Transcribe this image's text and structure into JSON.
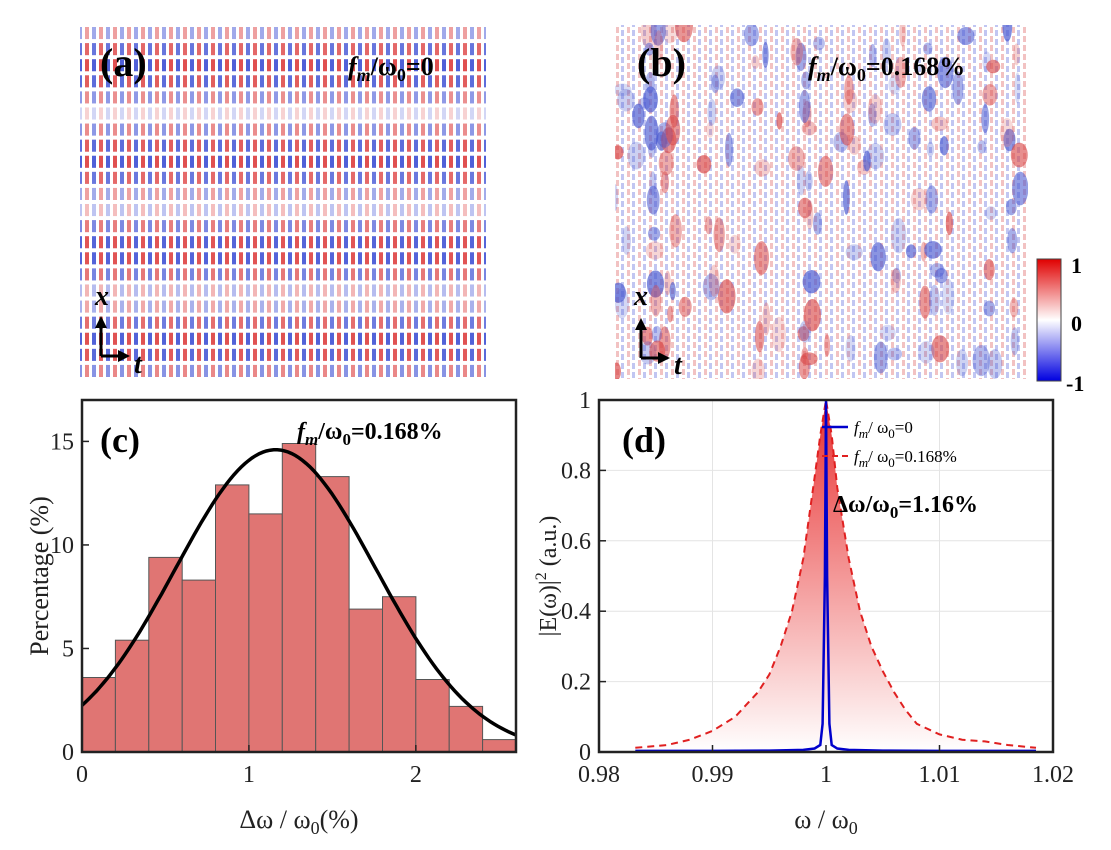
{
  "panels": {
    "a": {
      "letter": "(a)",
      "annotation": "f_m/ω_0=0",
      "ann_main": "f",
      "ann_sub": "m",
      "ann_mid": "/ω",
      "ann_sub2": "0",
      "ann_tail": "=0"
    },
    "b": {
      "letter": "(b)",
      "ann_main": "f",
      "ann_sub": "m",
      "ann_mid": "/ω",
      "ann_sub2": "0",
      "ann_tail": "=0.168%"
    },
    "axis_x": "x",
    "axis_t": "t"
  },
  "colorbar": {
    "ticks": [
      "1",
      "0",
      "-1"
    ],
    "colors": {
      "top": "#e00000",
      "mid": "#ffffff",
      "bottom": "#0000e0"
    }
  },
  "chart_data": [
    {
      "id": "c",
      "type": "bar",
      "letter": "(c)",
      "annotation": {
        "main": "f",
        "sub": "m",
        "mid": "/ω",
        "sub2": "0",
        "tail": "=0.168%"
      },
      "xlabel": {
        "main": "Δω / ω",
        "sub": "0",
        "tail": "(%)"
      },
      "ylabel": "Percentage (%)",
      "xlim": [
        0,
        2.6
      ],
      "ylim": [
        0,
        17
      ],
      "xticks": [
        "0",
        "1",
        "2"
      ],
      "xtick_values": [
        0,
        1,
        2
      ],
      "yticks": [
        "0",
        "5",
        "10",
        "15"
      ],
      "ytick_values": [
        0,
        5,
        10,
        15
      ],
      "bin_width": 0.2,
      "bin_edges": [
        0,
        0.2,
        0.4,
        0.6,
        0.8,
        1.0,
        1.2,
        1.4,
        1.6,
        1.8,
        2.0,
        2.2,
        2.4,
        2.6
      ],
      "values": [
        3.6,
        5.4,
        9.4,
        8.3,
        12.9,
        11.5,
        14.9,
        13.3,
        6.9,
        7.5,
        3.5,
        2.2,
        0.6
      ],
      "fit": {
        "type": "gaussian",
        "peak": 14.6,
        "mean": 1.16,
        "sigma": 0.6
      },
      "bar_color": "#e07573",
      "fit_color": "#000000"
    },
    {
      "id": "d",
      "type": "line",
      "letter": "(d)",
      "xlabel": {
        "main": "ω / ω",
        "sub": "0"
      },
      "ylabel": {
        "main": "|E(ω)|",
        "sup": "2",
        "tail": " (a.u.)"
      },
      "xlim": [
        0.98,
        1.02
      ],
      "ylim": [
        0,
        1
      ],
      "xticks": [
        "0.98",
        "0.99",
        "1",
        "1.01",
        "1.02"
      ],
      "xtick_values": [
        0.98,
        0.99,
        1.0,
        1.01,
        1.02
      ],
      "yticks": [
        "0",
        "0.2",
        "0.4",
        "0.6",
        "0.8",
        "1"
      ],
      "ytick_values": [
        0,
        0.2,
        0.4,
        0.6,
        0.8,
        1.0
      ],
      "grid": true,
      "legend_position": "top-right",
      "annotation": {
        "main": "Δω/ω",
        "sub": "0",
        "tail": "=1.16%"
      },
      "series": [
        {
          "name": "f_m/ω_0=0",
          "legend": {
            "main": "f",
            "sub": "m",
            "mid": "/ ω",
            "sub2": "0",
            "tail": "=0"
          },
          "color": "#0000cc",
          "style": "solid",
          "x": [
            0.9832,
            0.99,
            0.995,
            0.998,
            0.999,
            0.9995,
            0.9997,
            0.9999,
            1.0,
            1.0001,
            1.0003,
            1.0005,
            1.001,
            1.002,
            1.005,
            1.01,
            1.0185
          ],
          "y": [
            0.003,
            0.003,
            0.004,
            0.006,
            0.01,
            0.02,
            0.08,
            0.5,
            1.0,
            0.5,
            0.08,
            0.02,
            0.01,
            0.006,
            0.004,
            0.003,
            0.003
          ]
        },
        {
          "name": "f_m/ω_0=0.168%",
          "legend": {
            "main": "f",
            "sub": "m",
            "mid": "/ ω",
            "sub2": "0",
            "tail": "=0.168%"
          },
          "color": "#e02020",
          "style": "dashed",
          "x": [
            0.9832,
            0.986,
            0.988,
            0.99,
            0.992,
            0.994,
            0.995,
            0.996,
            0.997,
            0.998,
            0.999,
            0.9995,
            1.0,
            1.0005,
            1.001,
            1.002,
            1.003,
            1.004,
            1.005,
            1.006,
            1.007,
            1.008,
            1.01,
            1.012,
            1.014,
            1.016,
            1.0185
          ],
          "y": [
            0.012,
            0.02,
            0.035,
            0.06,
            0.1,
            0.17,
            0.22,
            0.3,
            0.4,
            0.55,
            0.78,
            0.9,
            1.0,
            0.9,
            0.75,
            0.55,
            0.4,
            0.3,
            0.23,
            0.17,
            0.12,
            0.08,
            0.05,
            0.035,
            0.03,
            0.02,
            0.012
          ]
        }
      ]
    }
  ]
}
